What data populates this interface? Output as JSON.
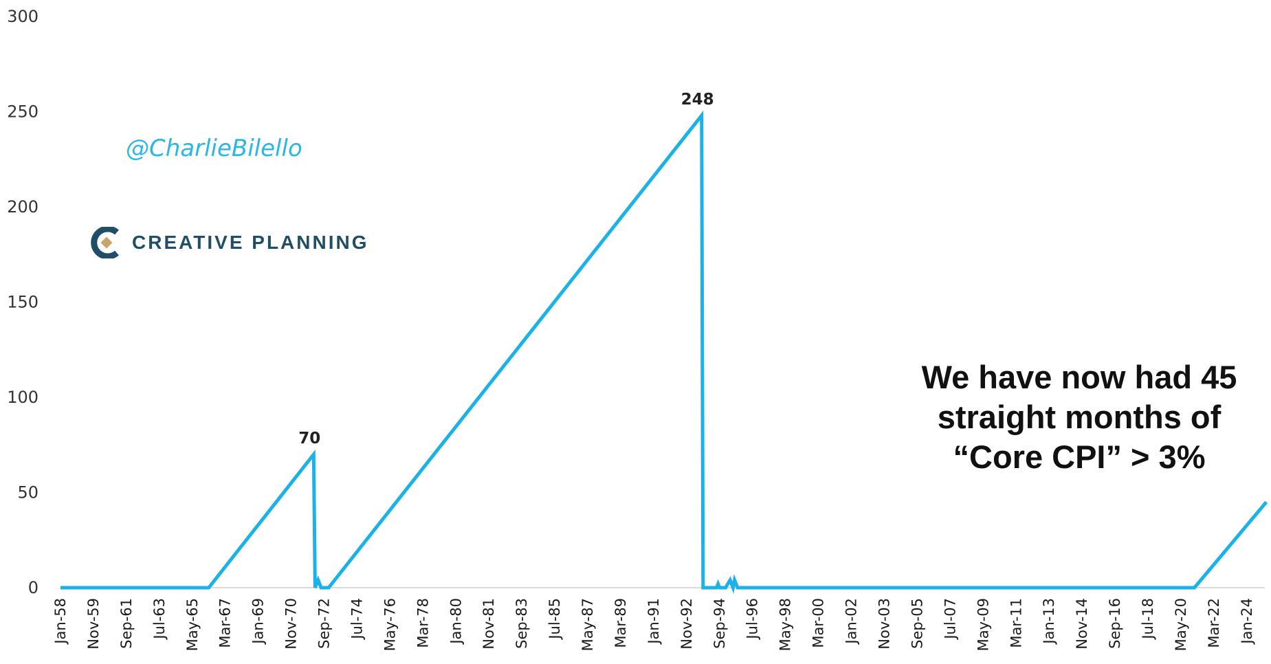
{
  "watermark": {
    "handle": "@CharlieBilello",
    "logo_text": "CREATIVE PLANNING"
  },
  "annotation": {
    "lines": [
      "We have now had 45",
      "straight months of",
      "“Core CPI” > 3%"
    ]
  },
  "colors": {
    "line": "#1ab2e8",
    "text": "#222222",
    "axis": "#d9d9d9",
    "handle": "#2bb6e8",
    "logo_dark": "#1f4e66",
    "logo_gold": "#c9a46a"
  },
  "chart_data": {
    "type": "line",
    "title": "",
    "xlabel": "",
    "ylabel": "",
    "ylim": [
      0,
      300
    ],
    "yticks": [
      0,
      50,
      100,
      150,
      200,
      250,
      300
    ],
    "xlim": [
      "Jan-58",
      "Jan-25"
    ],
    "xtick_labels": [
      "Jan-58",
      "Nov-59",
      "Sep-61",
      "Jul-63",
      "May-65",
      "Mar-67",
      "Jan-69",
      "Nov-70",
      "Sep-72",
      "Jul-74",
      "May-76",
      "Mar-78",
      "Jan-80",
      "Nov-81",
      "Sep-83",
      "Jul-85",
      "May-87",
      "Mar-89",
      "Jan-91",
      "Nov-92",
      "Sep-94",
      "Jul-96",
      "May-98",
      "Mar-00",
      "Jan-02",
      "Nov-03",
      "Sep-05",
      "Jul-07",
      "May-09",
      "Mar-11",
      "Jan-13",
      "Nov-14",
      "Sep-16",
      "Jul-18",
      "May-20",
      "Mar-22",
      "Jan-24"
    ],
    "grid": false,
    "legend": "none",
    "series": [
      {
        "points": [
          [
            "Jan-58",
            0
          ],
          [
            "Apr-66",
            0
          ],
          [
            "Feb-72",
            70
          ],
          [
            "Mar-72",
            0
          ],
          [
            "May-72",
            4
          ],
          [
            "Jul-72",
            0
          ],
          [
            "Dec-72",
            0
          ],
          [
            "Sep-93",
            248
          ],
          [
            "Oct-93",
            0
          ],
          [
            "Jul-94",
            0
          ],
          [
            "Aug-94",
            2
          ],
          [
            "Sep-94",
            0
          ],
          [
            "Jan-95",
            0
          ],
          [
            "Apr-95",
            4
          ],
          [
            "Jun-95",
            0
          ],
          [
            "Jul-95",
            4
          ],
          [
            "Sep-95",
            0
          ],
          [
            "Feb-21",
            0
          ],
          [
            "Feb-25",
            45
          ]
        ]
      }
    ],
    "annotations": [
      {
        "text": "70",
        "x": "Feb-72",
        "y": 70
      },
      {
        "text": "248",
        "x": "Sep-93",
        "y": 248
      }
    ]
  }
}
